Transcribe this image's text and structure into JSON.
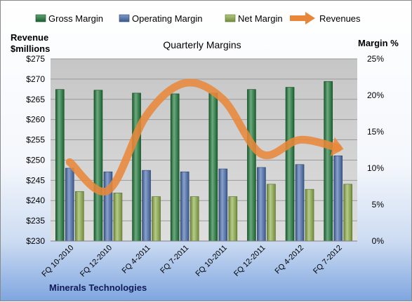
{
  "chart_data": {
    "type": "bar",
    "title": "Quarterly Margins",
    "company": "Minerals Technologies",
    "left_axis_label": [
      "Revenue",
      "$millions"
    ],
    "right_axis_label": "Margin %",
    "categories": [
      "FQ 10-2010",
      "FQ 12-2010",
      "FQ 4-2011",
      "FQ 7-2011",
      "FQ 10-2011",
      "FQ 12-2011",
      "FQ 4-2012",
      "FQ 7-2012"
    ],
    "left_axis": {
      "ylim": [
        230,
        275
      ],
      "ticks": [
        "$230",
        "$235",
        "$240",
        "$245",
        "$250",
        "$255",
        "$260",
        "$265",
        "$270",
        "$275"
      ]
    },
    "right_axis": {
      "ylim": [
        0,
        25
      ],
      "ticks": [
        "0%",
        "5%",
        "10%",
        "15%",
        "20%",
        "25%"
      ]
    },
    "grid": true,
    "legend_position": "top",
    "series": [
      {
        "name": "Gross Margin",
        "kind": "bar",
        "axis": "right",
        "color": "#1e7a3a",
        "values": [
          20.8,
          20.7,
          20.3,
          20.2,
          20.3,
          20.8,
          21.1,
          21.9
        ]
      },
      {
        "name": "Operating Margin",
        "kind": "bar",
        "axis": "right",
        "color": "#4a6fb0",
        "values": [
          10.0,
          9.5,
          9.7,
          9.5,
          9.9,
          10.1,
          10.5,
          11.7
        ]
      },
      {
        "name": "Net Margin",
        "kind": "bar",
        "axis": "right",
        "color": "#8fb04a",
        "values": [
          6.8,
          6.6,
          6.1,
          6.1,
          6.1,
          7.8,
          7.1,
          7.8
        ]
      },
      {
        "name": "Revenues",
        "kind": "line",
        "axis": "left",
        "color": "#e8873a",
        "values": [
          249.5,
          242.5,
          261,
          269,
          265,
          251.5,
          255,
          253
        ]
      }
    ]
  }
}
